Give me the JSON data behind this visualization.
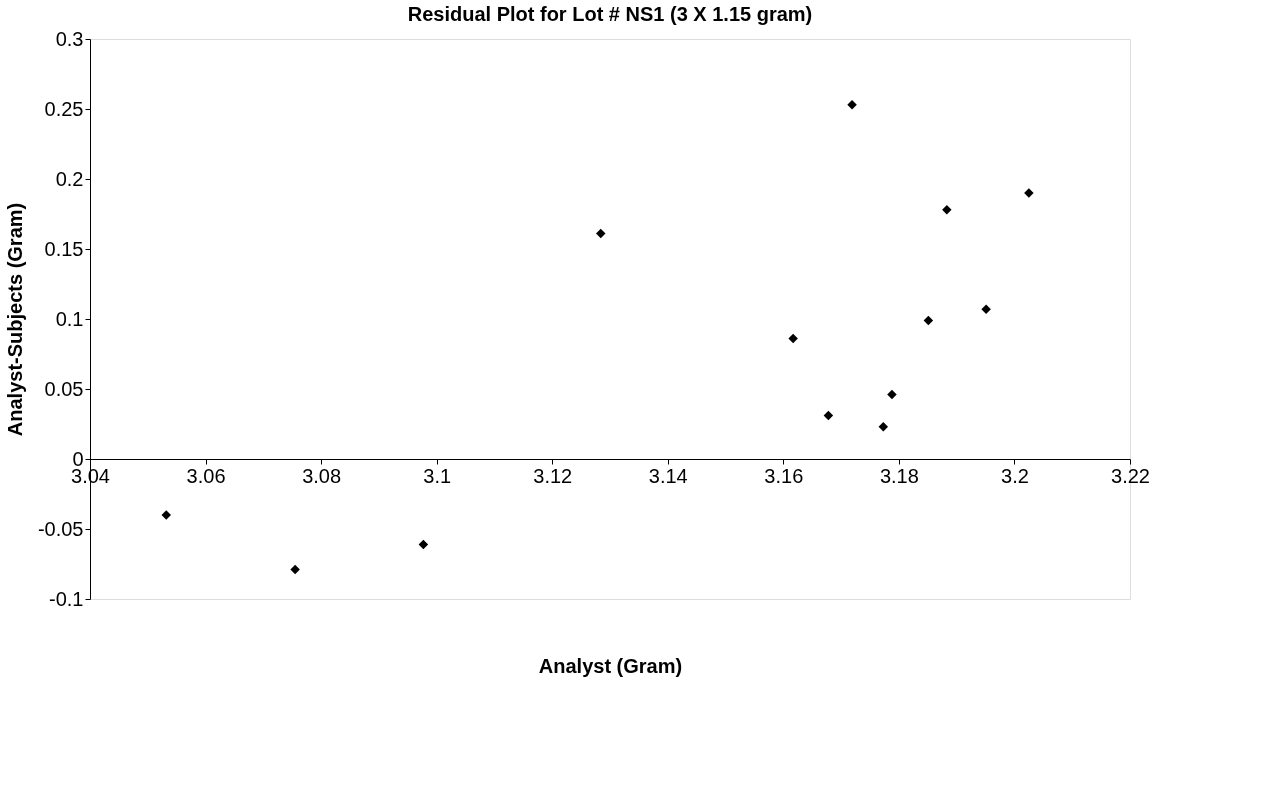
{
  "chart_data": {
    "type": "scatter",
    "title": "Residual Plot for Lot # NS1 (3 X 1.15 gram)",
    "xlabel": "Analyst (Gram)",
    "ylabel": "Analyst-Subjects (Gram)",
    "x": [
      3.0532,
      3.0755,
      3.0977,
      3.1284,
      3.1617,
      3.1678,
      3.1719,
      3.1773,
      3.1788,
      3.1851,
      3.1883,
      3.1951,
      3.2025
    ],
    "series": [
      {
        "color": "#000000",
        "values": [
          -0.04,
          -0.079,
          -0.061,
          0.161,
          0.086,
          0.031,
          0.253,
          0.023,
          0.046,
          0.099,
          0.178,
          0.107,
          0.19
        ]
      }
    ],
    "xlim": [
      3.04,
      3.22
    ],
    "xticks": [
      3.04,
      3.06,
      3.08,
      3.1,
      3.12,
      3.14,
      3.16,
      3.18,
      3.2,
      3.22
    ],
    "ylim": [
      -0.1,
      0.3
    ],
    "yticks": [
      -0.1,
      -0.05,
      0,
      0.05,
      0.1,
      0.15,
      0.2,
      0.25,
      0.3
    ],
    "marker": "diamond",
    "grid": false
  }
}
